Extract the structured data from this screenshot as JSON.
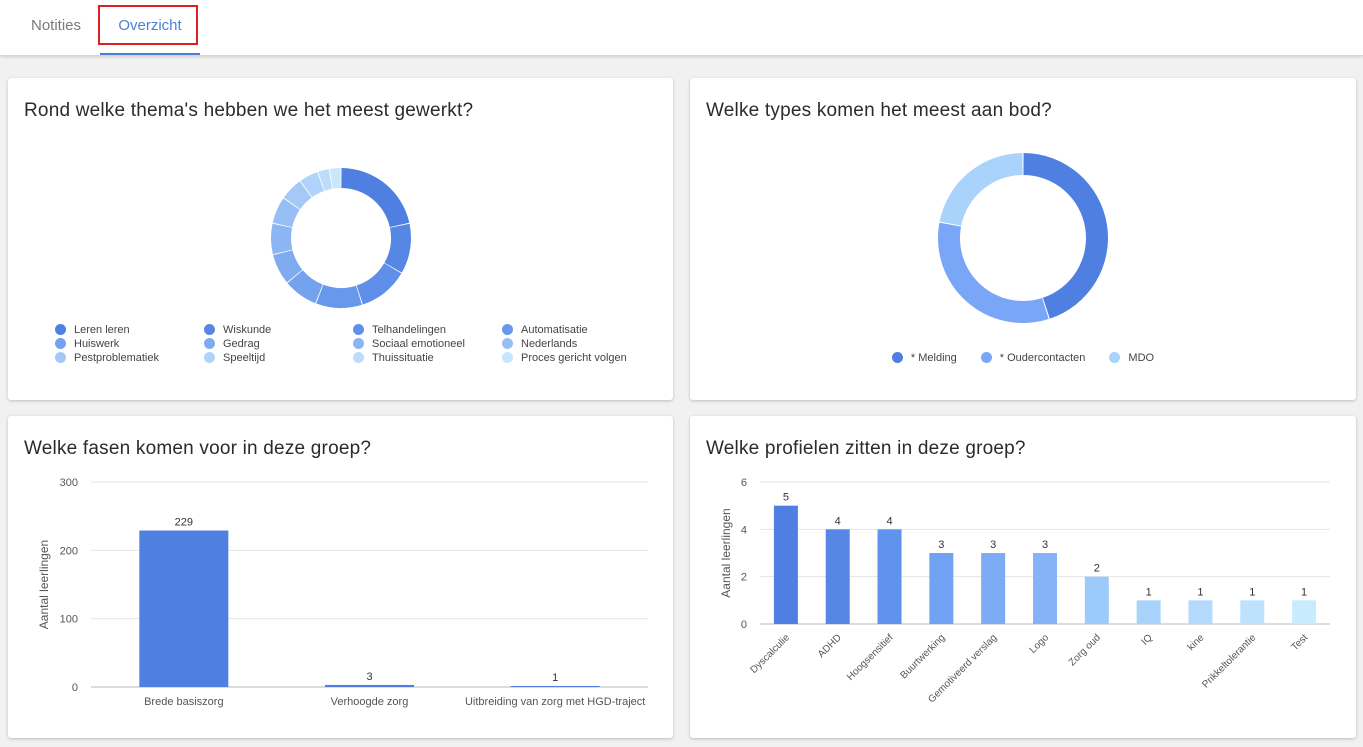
{
  "tabs": [
    {
      "label": "Notities",
      "active": false
    },
    {
      "label": "Overzicht",
      "active": true
    }
  ],
  "colors": {
    "accent": "#4a7fd8",
    "highlight": "#e02020"
  },
  "cards": {
    "themes": {
      "title": "Rond welke thema's hebben we het meest gewerkt?"
    },
    "types": {
      "title": "Welke types komen het meest aan bod?"
    },
    "phases": {
      "title": "Welke fasen komen voor in deze groep?"
    },
    "profiles": {
      "title": "Welke profielen zitten in deze groep?"
    }
  },
  "chart_data": [
    {
      "type": "pie",
      "donut": true,
      "title": "Rond welke thema's hebben we het meest gewerkt?",
      "legend_position": "bottom",
      "categories": [
        "Leren leren",
        "Wiskunde",
        "Telhandelingen",
        "Automatisatie",
        "Huiswerk",
        "Gedrag",
        "Sociaal emotioneel",
        "Nederlands",
        "Pestproblematiek",
        "Speeltijd",
        "Thuissituatie",
        "Proces gericht volgen"
      ],
      "values": [
        24,
        13,
        13,
        12,
        9,
        8,
        8,
        7,
        6,
        5,
        3,
        3
      ],
      "colors": [
        "#4f80e1",
        "#5787e4",
        "#5f8fe8",
        "#6898eb",
        "#74a2ee",
        "#7fabf0",
        "#8bb5f3",
        "#97bff5",
        "#a4c9f7",
        "#b0d3fa",
        "#bcdcfb",
        "#c8e6fd"
      ]
    },
    {
      "type": "pie",
      "donut": true,
      "title": "Welke types komen het meest aan bod?",
      "legend_position": "bottom",
      "categories": [
        "* Melding",
        "* Oudercontacten",
        "MDO"
      ],
      "values": [
        45,
        33,
        22
      ],
      "colors": [
        "#4f80e1",
        "#7aa6f7",
        "#a9d3fb"
      ]
    },
    {
      "type": "bar",
      "title": "Welke fasen komen voor in deze groep?",
      "ylabel": "Aantal leerlingen",
      "ylim": [
        0,
        300
      ],
      "yticks": [
        "0",
        "100",
        "200",
        "300"
      ],
      "grid": true,
      "categories": [
        "Brede basiszorg",
        "Verhoogde zorg",
        "Uitbreiding van zorg met HGD-traject"
      ],
      "values": [
        229,
        3,
        1
      ],
      "value_labels": [
        "229",
        "3",
        "1"
      ],
      "color": "#4f80e1"
    },
    {
      "type": "bar",
      "title": "Welke profielen zitten in deze groep?",
      "ylabel": "Aantal leerlingen",
      "ylim": [
        0,
        6
      ],
      "yticks": [
        "0",
        "2",
        "4",
        "6"
      ],
      "grid": true,
      "categories": [
        "Dyscalculie",
        "ADHD",
        "Hoogsensitief",
        "Buurtwerking",
        "Gemotiveerd verslag",
        "Logo",
        "Zorg oud",
        "IQ",
        "kine",
        "Prikkeltolerantie",
        "Test"
      ],
      "values": [
        5,
        4,
        4,
        3,
        3,
        3,
        2,
        1,
        1,
        1,
        1
      ],
      "value_labels": [
        "5",
        "4",
        "4",
        "3",
        "3",
        "3",
        "2",
        "1",
        "1",
        "1",
        "1"
      ],
      "colors": [
        "#4f80e1",
        "#5787e4",
        "#6093ee",
        "#72a2f4",
        "#7eabf5",
        "#86b3f8",
        "#9ccbfb",
        "#a9d3fb",
        "#b3dafc",
        "#bde2fd",
        "#c8ecfe"
      ]
    }
  ]
}
